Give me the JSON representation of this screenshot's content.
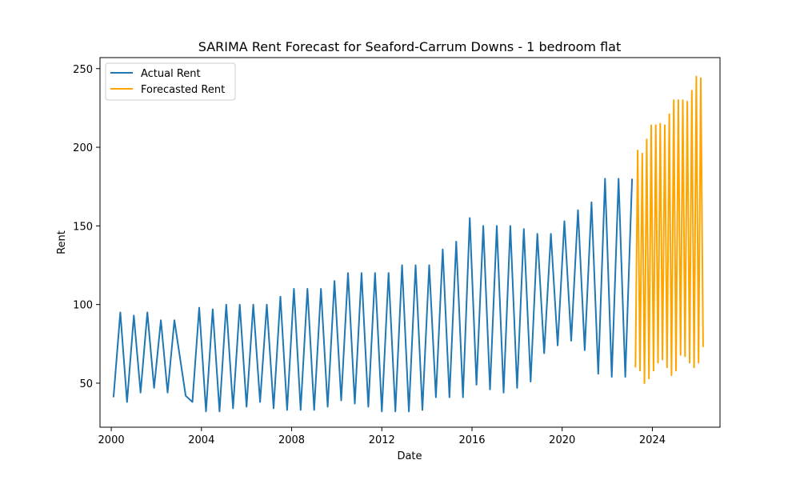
{
  "chart_data": {
    "type": "line",
    "title": "SARIMA Rent Forecast for Seaford-Carrum Downs - 1 bedroom flat",
    "xlabel": "Date",
    "ylabel": "Rent",
    "xlim": [
      1999.5,
      2027.0
    ],
    "ylim": [
      22,
      257
    ],
    "x_ticks": [
      2000,
      2004,
      2008,
      2012,
      2016,
      2020,
      2024
    ],
    "x_tick_labels": [
      "2000",
      "2004",
      "2008",
      "2012",
      "2016",
      "2020",
      "2024"
    ],
    "y_ticks": [
      50,
      100,
      150,
      200,
      250
    ],
    "y_tick_labels": [
      "50",
      "100",
      "150",
      "200",
      "250"
    ],
    "grid": false,
    "legend_position": "top-left",
    "series": [
      {
        "name": "Actual Rent",
        "color": "#1f77b4",
        "x": [
          2000.1,
          2000.4,
          2000.7,
          2001.0,
          2001.3,
          2001.6,
          2001.9,
          2002.2,
          2002.5,
          2002.8,
          2003.3,
          2003.6,
          2003.9,
          2004.2,
          2004.5,
          2004.8,
          2005.1,
          2005.4,
          2005.7,
          2006.0,
          2006.3,
          2006.6,
          2006.9,
          2007.2,
          2007.5,
          2007.8,
          2008.1,
          2008.4,
          2008.7,
          2009.0,
          2009.3,
          2009.6,
          2009.9,
          2010.2,
          2010.5,
          2010.8,
          2011.1,
          2011.4,
          2011.7,
          2012.0,
          2012.3,
          2012.6,
          2012.9,
          2013.2,
          2013.5,
          2013.8,
          2014.1,
          2014.4,
          2014.7,
          2015.0,
          2015.3,
          2015.6,
          2015.9,
          2016.2,
          2016.5,
          2016.8,
          2017.1,
          2017.4,
          2017.7,
          2018.0,
          2018.3,
          2018.6,
          2018.9,
          2019.2,
          2019.5,
          2019.8,
          2020.1,
          2020.4,
          2020.7,
          2021.0,
          2021.3,
          2021.6,
          2021.9,
          2022.2,
          2022.5,
          2022.8,
          2023.1
        ],
        "values": [
          41,
          95,
          38,
          93,
          44,
          95,
          47,
          90,
          44,
          90,
          42,
          38,
          98,
          32,
          97,
          32,
          100,
          34,
          100,
          35,
          100,
          38,
          100,
          34,
          105,
          33,
          110,
          33,
          110,
          33,
          110,
          35,
          115,
          39,
          120,
          37,
          120,
          35,
          120,
          32,
          120,
          32,
          125,
          32,
          125,
          33,
          125,
          41,
          135,
          41,
          140,
          41,
          155,
          49,
          150,
          46,
          150,
          44,
          150,
          47,
          148,
          51,
          145,
          69,
          145,
          74,
          153,
          77,
          160,
          71,
          165,
          56,
          180,
          54,
          180,
          54,
          180
        ]
      },
      {
        "name": "Forecasted Rent",
        "color": "#ffa500",
        "x": [
          2023.25,
          2023.35,
          2023.45,
          2023.55,
          2023.65,
          2023.75,
          2023.85,
          2023.95,
          2024.05,
          2024.15,
          2024.25,
          2024.35,
          2024.45,
          2024.55,
          2024.65,
          2024.75,
          2024.85,
          2024.95,
          2025.05,
          2025.15,
          2025.25,
          2025.35,
          2025.45,
          2025.55,
          2025.65,
          2025.75,
          2025.85,
          2025.95,
          2026.05,
          2026.15,
          2026.25
        ],
        "values": [
          60,
          198,
          58,
          196,
          50,
          205,
          53,
          214,
          58,
          214,
          63,
          215,
          65,
          214,
          60,
          221,
          55,
          230,
          58,
          230,
          68,
          230,
          67,
          229,
          63,
          236,
          60,
          245,
          63,
          244,
          73
        ]
      }
    ]
  }
}
